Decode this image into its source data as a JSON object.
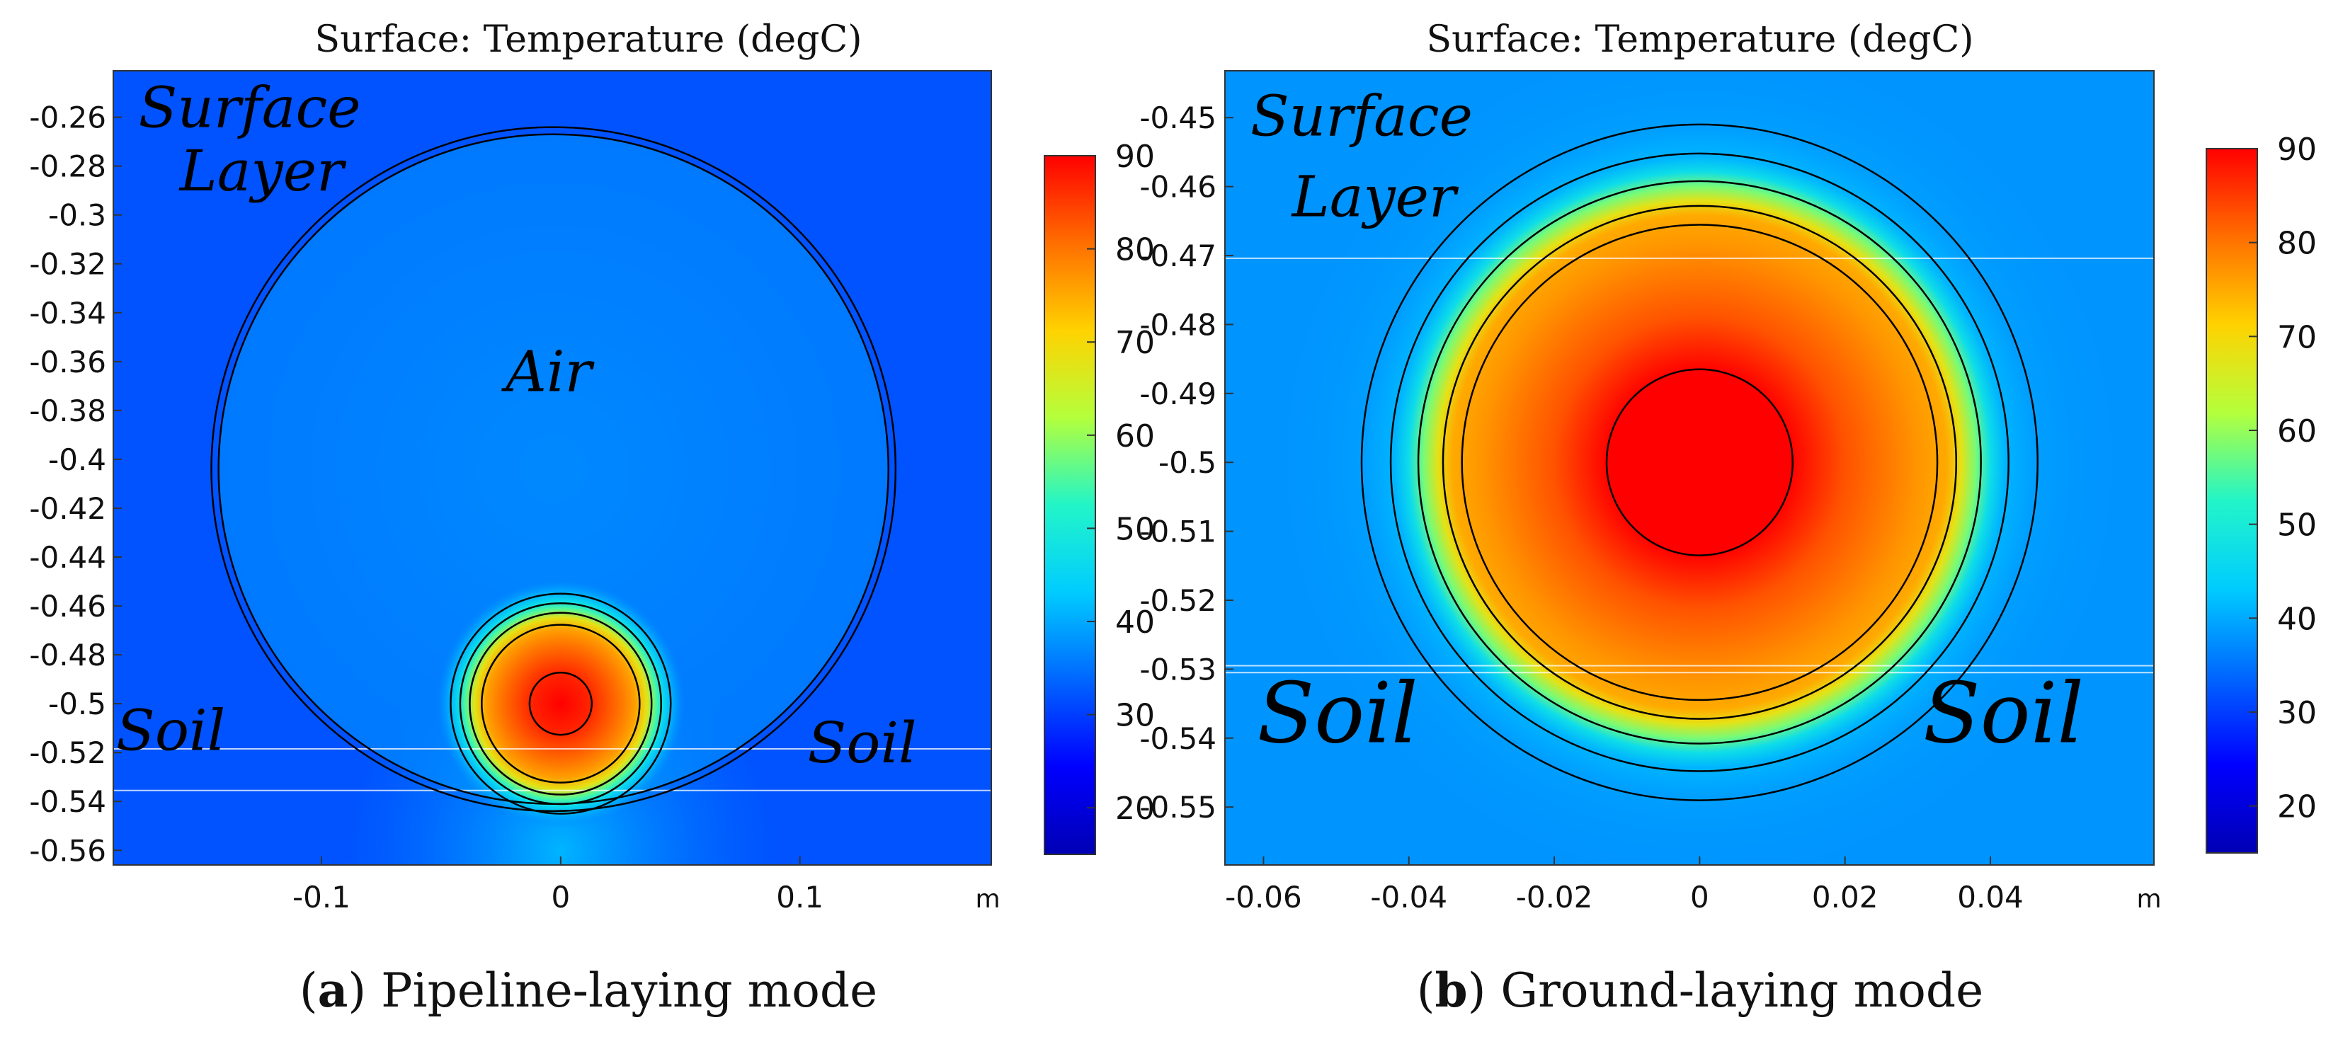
{
  "chart_data": [
    {
      "type": "heatmap",
      "panel_label": "a",
      "title": "Surface: Temperature (degC)",
      "caption": "Pipeline-laying mode",
      "x_unit": "m",
      "xlim": [
        -0.187,
        0.18
      ],
      "ylim": [
        -0.566,
        -0.241
      ],
      "x_ticks": [
        -0.1,
        0,
        0.1
      ],
      "x_tick_labels": [
        "-0.1",
        "0",
        "0.1"
      ],
      "y_ticks": [
        -0.26,
        -0.28,
        -0.3,
        -0.32,
        -0.34,
        -0.36,
        -0.38,
        -0.4,
        -0.42,
        -0.44,
        -0.46,
        -0.48,
        -0.5,
        -0.52,
        -0.54,
        -0.56
      ],
      "y_tick_labels": [
        "-0.26",
        "-0.28",
        "-0.3",
        "-0.32",
        "-0.34",
        "-0.36",
        "-0.38",
        "-0.4",
        "-0.42",
        "-0.44",
        "-0.46",
        "-0.48",
        "-0.5",
        "-0.52",
        "-0.54",
        "-0.56"
      ],
      "colorbar": {
        "min": 15,
        "max": 90,
        "ticks": [
          90,
          80,
          70,
          60,
          50,
          40,
          30,
          20
        ],
        "tick_labels": [
          "90",
          "80",
          "70",
          "60",
          "50",
          "40",
          "30",
          "20"
        ]
      },
      "background_temperature": 32,
      "air_temperature": 37,
      "core_temperature": 90,
      "annotations": [
        {
          "text": "Surface",
          "x": -0.13,
          "y": -0.264
        },
        {
          "text": "Layer",
          "x": -0.125,
          "y": -0.29
        },
        {
          "text": "Air",
          "x": -0.005,
          "y": -0.372
        },
        {
          "text": "Soil",
          "x": -0.163,
          "y": -0.519
        },
        {
          "text": "Soil",
          "x": 0.126,
          "y": -0.524
        }
      ],
      "circles": [
        {
          "cx": -0.003,
          "cy": -0.404,
          "r": 0.143
        },
        {
          "cx": -0.003,
          "cy": -0.404,
          "r": 0.14
        },
        {
          "cx": 0,
          "cy": -0.5,
          "r": 0.046
        },
        {
          "cx": 0,
          "cy": -0.5,
          "r": 0.042
        },
        {
          "cx": 0,
          "cy": -0.5,
          "r": 0.038
        },
        {
          "cx": 0,
          "cy": -0.5,
          "r": 0.033
        },
        {
          "cx": 0,
          "cy": -0.5,
          "r": 0.013
        }
      ]
    },
    {
      "type": "heatmap",
      "panel_label": "b",
      "title": "Surface: Temperature (degC)",
      "caption": "Ground-laying mode",
      "x_unit": "m",
      "xlim": [
        -0.0653,
        0.0625
      ],
      "ylim": [
        -0.5584,
        -0.4432
      ],
      "x_ticks": [
        -0.06,
        -0.04,
        -0.02,
        0,
        0.02,
        0.04
      ],
      "x_tick_labels": [
        "-0.06",
        "-0.04",
        "-0.02",
        "0",
        "0.02",
        "0.04"
      ],
      "y_ticks": [
        -0.45,
        -0.46,
        -0.47,
        -0.48,
        -0.49,
        -0.5,
        -0.51,
        -0.52,
        -0.53,
        -0.54,
        -0.55
      ],
      "y_tick_labels": [
        "-0.45",
        "-0.46",
        "-0.47",
        "-0.48",
        "-0.49",
        "-0.5",
        "-0.51",
        "-0.52",
        "-0.53",
        "-0.54",
        "-0.55"
      ],
      "colorbar": {
        "min": 15,
        "max": 90,
        "ticks": [
          90,
          80,
          70,
          60,
          50,
          40,
          30,
          20
        ],
        "tick_labels": [
          "90",
          "80",
          "70",
          "60",
          "50",
          "40",
          "30",
          "20"
        ]
      },
      "background_temperature": 38,
      "core_temperature": 90,
      "annotations": [
        {
          "text": "Surface",
          "x": -0.0465,
          "y": -0.4526
        },
        {
          "text": "Layer",
          "x": -0.0448,
          "y": -0.4643
        },
        {
          "text": "Soil",
          "x": -0.0498,
          "y": -0.5406
        },
        {
          "text": "Soil",
          "x": 0.0418,
          "y": -0.5406
        }
      ],
      "circles": [
        {
          "cx": 0,
          "cy": -0.5,
          "r": 0.0465
        },
        {
          "cx": 0,
          "cy": -0.5,
          "r": 0.0425
        },
        {
          "cx": 0,
          "cy": -0.5,
          "r": 0.0387
        },
        {
          "cx": 0,
          "cy": -0.5,
          "r": 0.0353
        },
        {
          "cx": 0,
          "cy": -0.5,
          "r": 0.0327
        },
        {
          "cx": 0,
          "cy": -0.5,
          "r": 0.0128
        }
      ]
    }
  ]
}
